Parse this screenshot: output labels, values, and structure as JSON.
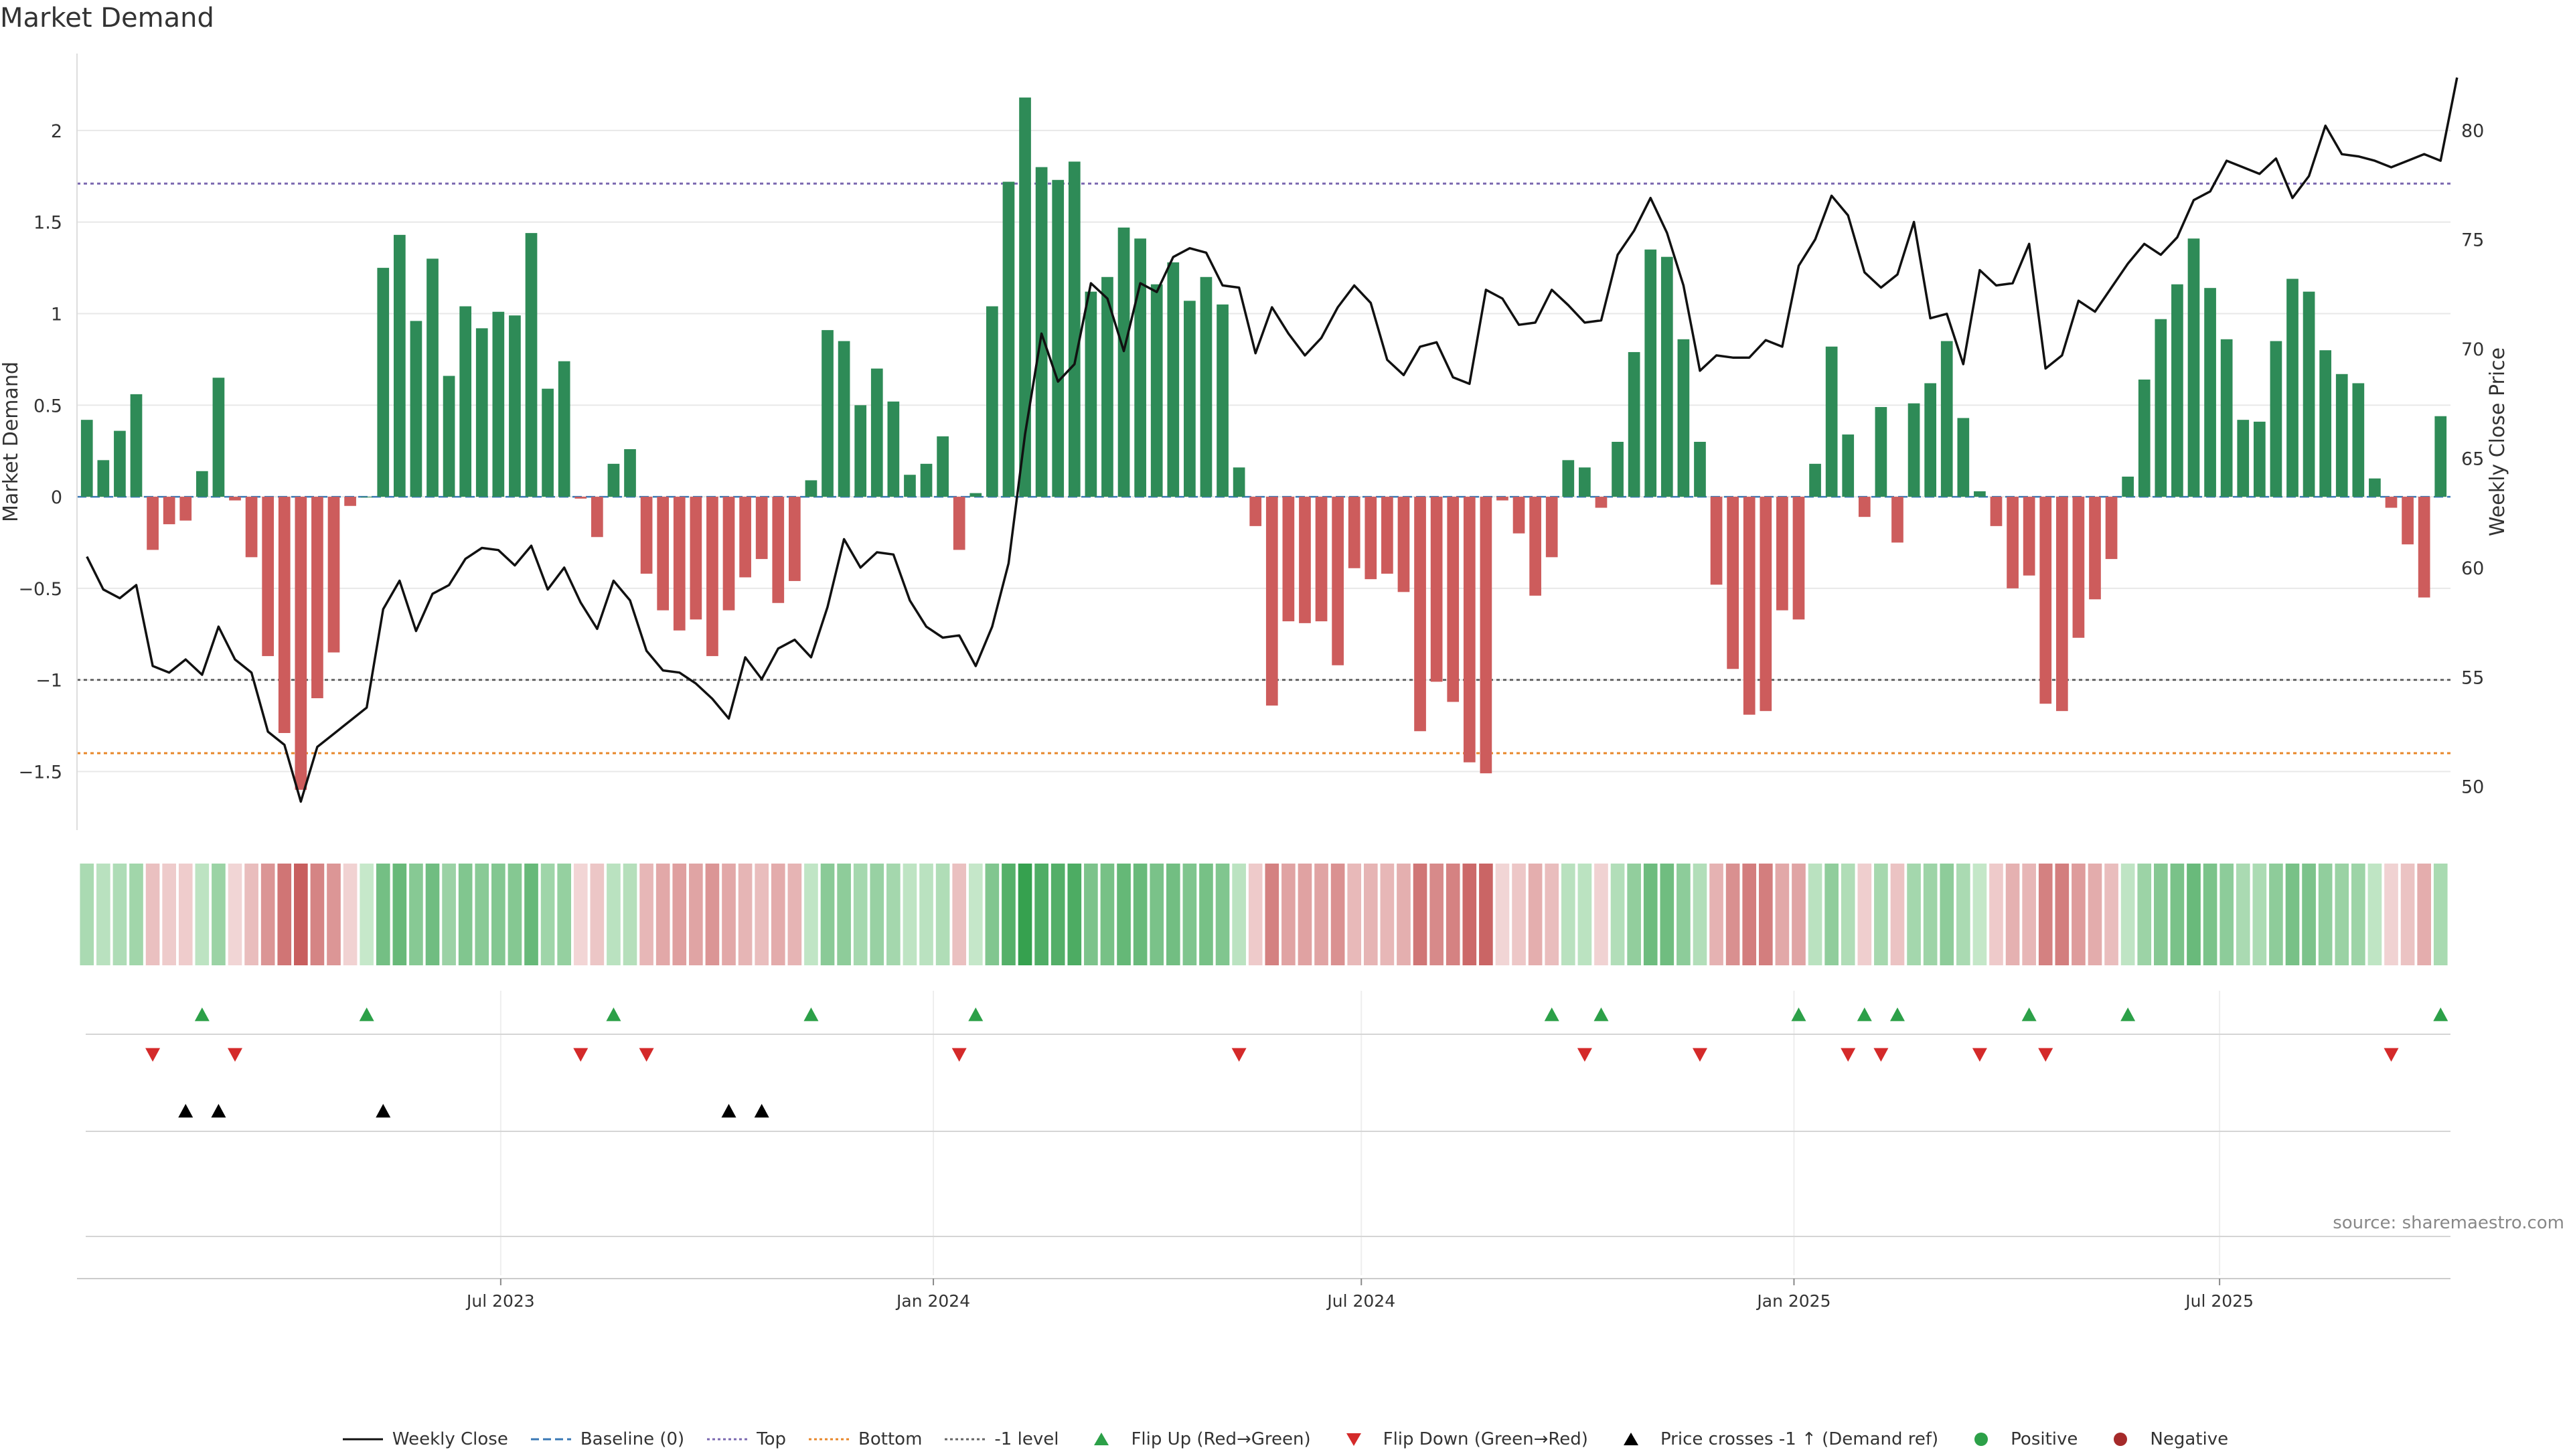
{
  "title": "Market Demand",
  "source": "source: sharemaestro.com",
  "chart_data": {
    "type": "bar",
    "y_left_label": "Market Demand",
    "y_right_label": "Weekly Close Price",
    "ylim": [
      -1.82,
      2.42
    ],
    "y2lim": [
      48.0,
      83.5
    ],
    "y_ticks": [
      -1.5,
      -1,
      -0.5,
      0,
      0.5,
      1,
      1.5,
      2
    ],
    "y_tick_labels": [
      "−1.5",
      "−1",
      "−0.5",
      "0",
      "0.5",
      "1",
      "1.5",
      "2"
    ],
    "y2_ticks": [
      50,
      55,
      60,
      65,
      70,
      75,
      80
    ],
    "x_start": "2023-01-06",
    "x_step_days": 7,
    "x_ticks": [
      {
        "date": "2023-07-01",
        "label": "Jul 2023"
      },
      {
        "date": "2024-01-01",
        "label": "Jan 2024"
      },
      {
        "date": "2024-07-01",
        "label": "Jul 2024"
      },
      {
        "date": "2025-01-01",
        "label": "Jan 2025"
      },
      {
        "date": "2025-07-01",
        "label": "Jul 2025"
      }
    ],
    "reference_lines": [
      {
        "name": "Top",
        "value": 1.71,
        "color": "#7b68b0"
      },
      {
        "name": "-1 level",
        "value": -1.0,
        "color": "#666666"
      },
      {
        "name": "Bottom",
        "value": -1.4,
        "color": "#e8872a"
      }
    ],
    "demand": [
      0.42,
      0.2,
      0.36,
      0.56,
      -0.29,
      -0.15,
      -0.13,
      0.14,
      0.65,
      -0.02,
      -0.33,
      -0.87,
      -1.29,
      -1.6,
      -1.1,
      -0.85,
      -0.05,
      0.0,
      1.25,
      1.43,
      0.96,
      1.3,
      0.66,
      1.04,
      0.92,
      1.01,
      0.99,
      1.44,
      0.59,
      0.74,
      -0.01,
      -0.22,
      0.18,
      0.26,
      -0.42,
      -0.62,
      -0.73,
      -0.67,
      -0.87,
      -0.62,
      -0.44,
      -0.34,
      -0.58,
      -0.46,
      0.09,
      0.91,
      0.85,
      0.5,
      0.7,
      0.52,
      0.12,
      0.18,
      0.33,
      -0.29,
      0.02,
      1.04,
      1.72,
      2.18,
      1.8,
      1.73,
      1.83,
      1.12,
      1.2,
      1.47,
      1.41,
      1.16,
      1.28,
      1.07,
      1.2,
      1.05,
      0.16,
      -0.16,
      -1.14,
      -0.68,
      -0.69,
      -0.68,
      -0.92,
      -0.39,
      -0.45,
      -0.42,
      -0.52,
      -1.28,
      -1.01,
      -1.12,
      -1.45,
      -1.51,
      -0.02,
      -0.2,
      -0.54,
      -0.33,
      0.2,
      0.16,
      -0.06,
      0.3,
      0.79,
      1.35,
      1.31,
      0.86,
      0.3,
      -0.48,
      -0.94,
      -1.19,
      -1.17,
      -0.62,
      -0.67,
      0.18,
      0.82,
      0.34,
      -0.11,
      0.49,
      -0.25,
      0.51,
      0.62,
      0.85,
      0.43,
      0.03,
      -0.16,
      -0.5,
      -0.43,
      -1.13,
      -1.17,
      -0.77,
      -0.56,
      -0.34,
      0.11,
      0.64,
      0.97,
      1.16,
      1.41,
      1.14,
      0.86,
      0.42,
      0.41,
      0.85,
      1.19,
      1.12,
      0.8,
      0.67,
      0.62,
      0.1,
      -0.06,
      -0.26,
      -0.55,
      0.44
    ],
    "close": [
      60.5,
      59.0,
      58.6,
      59.2,
      55.5,
      55.2,
      55.8,
      55.1,
      57.3,
      55.8,
      55.2,
      52.5,
      51.9,
      49.3,
      51.8,
      52.4,
      53.0,
      53.6,
      58.1,
      59.4,
      57.1,
      58.8,
      59.2,
      60.4,
      60.9,
      60.8,
      60.1,
      61.0,
      59.0,
      60.0,
      58.4,
      57.2,
      59.4,
      58.5,
      56.2,
      55.3,
      55.2,
      54.7,
      54.0,
      53.1,
      55.9,
      54.9,
      56.3,
      56.7,
      55.9,
      58.2,
      61.3,
      60.0,
      60.7,
      60.6,
      58.5,
      57.3,
      56.8,
      56.9,
      55.5,
      57.3,
      60.2,
      66.1,
      70.7,
      68.5,
      69.3,
      73.0,
      72.3,
      69.9,
      73.0,
      72.6,
      74.2,
      74.6,
      74.4,
      72.9,
      72.8,
      69.8,
      71.9,
      70.7,
      69.7,
      70.5,
      71.9,
      72.9,
      72.1,
      69.5,
      68.8,
      70.1,
      70.3,
      68.7,
      68.4,
      72.7,
      72.3,
      71.1,
      71.2,
      72.7,
      72.0,
      71.2,
      71.3,
      74.3,
      75.4,
      76.9,
      75.3,
      72.9,
      69.0,
      69.7,
      69.6,
      69.6,
      70.4,
      70.1,
      73.8,
      75.0,
      77.0,
      76.1,
      73.5,
      72.8,
      73.4,
      75.8,
      71.4,
      71.6,
      69.3,
      73.6,
      72.9,
      73.0,
      74.8,
      69.1,
      69.7,
      72.2,
      71.7,
      72.8,
      73.9,
      74.8,
      74.3,
      75.1,
      76.8,
      77.2,
      78.6,
      78.3,
      78.0,
      78.7,
      76.9,
      77.9,
      80.2,
      78.9,
      78.8,
      78.6,
      78.3,
      78.6,
      78.9,
      78.6,
      82.4
    ],
    "flip_up_weeks": [
      7,
      17,
      32,
      44,
      54,
      89,
      92,
      104,
      108,
      110,
      118,
      124,
      143
    ],
    "flip_down_weeks": [
      4,
      9,
      30,
      34,
      53,
      70,
      91,
      98,
      107,
      109,
      115,
      119,
      140
    ],
    "price_cross_weeks": [
      6,
      8,
      18,
      39,
      41
    ]
  },
  "legend": {
    "weekly_close": "Weekly Close",
    "baseline": "Baseline (0)",
    "top": "Top",
    "bottom": "Bottom",
    "minus_one": "-1 level",
    "flip_up": "Flip Up (Red→Green)",
    "flip_down": "Flip Down (Green→Red)",
    "price_cross": "Price crosses -1 ↑ (Demand ref)",
    "positive": "Positive",
    "negative": "Negative"
  },
  "colors": {
    "positive": "#2e8b57",
    "negative": "#cd5c5c",
    "close_line": "#111111",
    "baseline": "#3a78b5",
    "top": "#7b68b0",
    "bottom": "#e8872a",
    "minus_one": "#666666",
    "flip_up": "#2ca048",
    "flip_down": "#d42a2a",
    "price_cross": "#000000",
    "positive_dot": "#2ca048",
    "negative_dot": "#a52a2a"
  }
}
